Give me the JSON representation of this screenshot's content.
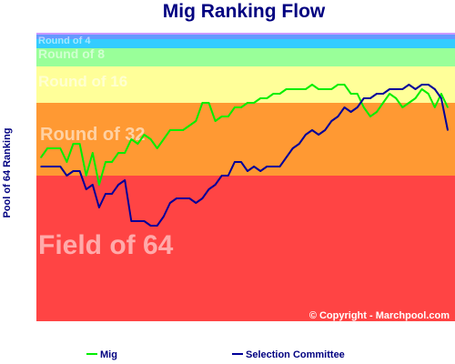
{
  "chart_data": {
    "type": "line",
    "title": "Mig Ranking Flow",
    "ylabel": "Pool of 64 Ranking",
    "copyright": "© Copyright - Marchpool.com",
    "bands": [
      {
        "label": "Field of 64",
        "color": "#ff4444"
      },
      {
        "label": "Round of 32",
        "color": "#ff9933"
      },
      {
        "label": "Round of 16",
        "color": "#ffff99"
      },
      {
        "label": "Round of 8",
        "color": "#99ff99"
      },
      {
        "label": "Round of 4",
        "color": "#33ccff"
      },
      {
        "label": "",
        "color": "#6699ff"
      },
      {
        "label": "",
        "color": "#cc99ff"
      }
    ],
    "series": [
      {
        "name": "Mig",
        "color": "#00ee00",
        "values": [
          37,
          39,
          39,
          39,
          36,
          40,
          40,
          33,
          38,
          31,
          36,
          36,
          38,
          38,
          41,
          40,
          42,
          41,
          39,
          41,
          43,
          43,
          43,
          44,
          45,
          49,
          49,
          45,
          46,
          46,
          48,
          48,
          49,
          49,
          50,
          50,
          51,
          51,
          52,
          52,
          52,
          52,
          53,
          52,
          52,
          52,
          53,
          53,
          51,
          51,
          48,
          46,
          47,
          49,
          51,
          50,
          48,
          49,
          50,
          52,
          51,
          48,
          51,
          48
        ]
      },
      {
        "name": "Selection Committee",
        "color": "#000099",
        "values": [
          35,
          35,
          35,
          35,
          33,
          34,
          34,
          30,
          31,
          26,
          29,
          29,
          31,
          32,
          23,
          23,
          23,
          22,
          22,
          24,
          27,
          28,
          28,
          28,
          27,
          28,
          30,
          31,
          33,
          33,
          36,
          36,
          34,
          35,
          34,
          35,
          35,
          35,
          37,
          39,
          40,
          42,
          43,
          42,
          43,
          45,
          46,
          48,
          47,
          48,
          50,
          50,
          51,
          51,
          52,
          52,
          52,
          53,
          52,
          53,
          53,
          52,
          50,
          43
        ]
      }
    ]
  }
}
